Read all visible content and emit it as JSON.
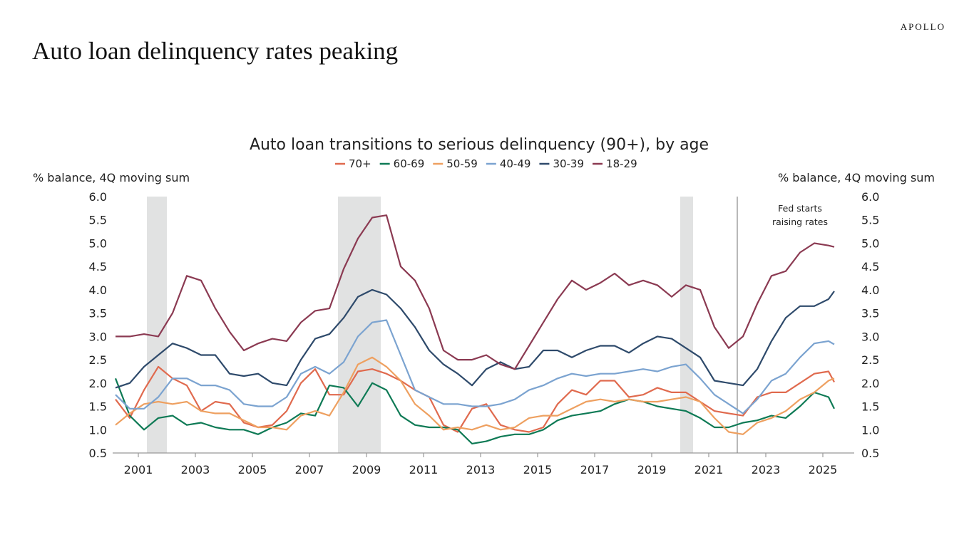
{
  "header": {
    "logo": "APOLLO",
    "title": "Auto loan delinquency rates peaking"
  },
  "chart_data": {
    "type": "line",
    "title": "Auto loan transitions to serious delinquency (90+), by age",
    "ylabel_left": "% balance, 4Q moving sum",
    "ylabel_right": "% balance, 4Q moving sum",
    "ylim": [
      0.5,
      6.0
    ],
    "yticks": [
      "0.5",
      "1.0",
      "1.5",
      "2.0",
      "2.5",
      "3.0",
      "3.5",
      "4.0",
      "4.5",
      "5.0",
      "5.5",
      "6.0"
    ],
    "xlim": [
      2000.1,
      2025.8
    ],
    "xticks": [
      "2001",
      "2003",
      "2005",
      "2007",
      "2009",
      "2011",
      "2013",
      "2015",
      "2017",
      "2019",
      "2021",
      "2023",
      "2025"
    ],
    "legend_position": "top-center",
    "grid": false,
    "recessions": [
      [
        2001.3,
        2002.0
      ],
      [
        2008.0,
        2009.5
      ],
      [
        2020.0,
        2020.45
      ]
    ],
    "annotation": {
      "x": 2022.0,
      "lines": [
        "Fed starts",
        "raising rates"
      ]
    },
    "x": [
      2000.2,
      2000.7,
      2001.2,
      2001.7,
      2002.2,
      2002.7,
      2003.2,
      2003.7,
      2004.2,
      2004.7,
      2005.2,
      2005.7,
      2006.2,
      2006.7,
      2007.2,
      2007.7,
      2008.2,
      2008.7,
      2009.2,
      2009.7,
      2010.2,
      2010.7,
      2011.2,
      2011.7,
      2012.2,
      2012.7,
      2013.2,
      2013.7,
      2014.2,
      2014.7,
      2015.2,
      2015.7,
      2016.2,
      2016.7,
      2017.2,
      2017.7,
      2018.2,
      2018.7,
      2019.2,
      2019.7,
      2020.2,
      2020.7,
      2021.2,
      2021.7,
      2022.2,
      2022.7,
      2023.2,
      2023.7,
      2024.2,
      2024.7,
      2025.2,
      2025.4
    ],
    "series": [
      {
        "name": "70+",
        "color": "#e06a4e",
        "values": [
          1.65,
          1.25,
          1.85,
          2.35,
          2.1,
          1.95,
          1.4,
          1.6,
          1.55,
          1.15,
          1.05,
          1.1,
          1.4,
          2.0,
          2.3,
          1.75,
          1.75,
          2.25,
          2.3,
          2.2,
          2.05,
          1.85,
          1.7,
          1.1,
          0.95,
          1.45,
          1.55,
          1.1,
          1.0,
          0.95,
          1.05,
          1.55,
          1.85,
          1.75,
          2.05,
          2.05,
          1.7,
          1.75,
          1.9,
          1.8,
          1.8,
          1.6,
          1.4,
          1.35,
          1.3,
          1.7,
          1.8,
          1.8,
          2.0,
          2.2,
          2.25,
          2.02
        ]
      },
      {
        "name": "60-69",
        "color": "#0e7a55",
        "values": [
          2.1,
          1.3,
          1.0,
          1.25,
          1.3,
          1.1,
          1.15,
          1.05,
          1.0,
          1.0,
          0.9,
          1.05,
          1.15,
          1.35,
          1.3,
          1.95,
          1.9,
          1.5,
          2.0,
          1.85,
          1.3,
          1.1,
          1.05,
          1.05,
          1.0,
          0.7,
          0.75,
          0.85,
          0.9,
          0.9,
          1.0,
          1.2,
          1.3,
          1.35,
          1.4,
          1.55,
          1.65,
          1.6,
          1.5,
          1.45,
          1.4,
          1.25,
          1.05,
          1.05,
          1.15,
          1.2,
          1.3,
          1.25,
          1.5,
          1.8,
          1.7,
          1.45
        ]
      },
      {
        "name": "50-59",
        "color": "#eea060",
        "values": [
          1.1,
          1.35,
          1.55,
          1.6,
          1.55,
          1.6,
          1.4,
          1.35,
          1.35,
          1.2,
          1.05,
          1.05,
          1.0,
          1.3,
          1.4,
          1.3,
          1.8,
          2.4,
          2.55,
          2.35,
          2.05,
          1.55,
          1.3,
          1.0,
          1.05,
          1.0,
          1.1,
          1.0,
          1.05,
          1.25,
          1.3,
          1.3,
          1.45,
          1.6,
          1.65,
          1.6,
          1.65,
          1.6,
          1.6,
          1.65,
          1.7,
          1.6,
          1.25,
          0.95,
          0.9,
          1.15,
          1.25,
          1.4,
          1.65,
          1.8,
          2.05,
          2.1
        ]
      },
      {
        "name": "40-49",
        "color": "#7ba3d0",
        "values": [
          1.75,
          1.45,
          1.45,
          1.7,
          2.1,
          2.1,
          1.95,
          1.95,
          1.85,
          1.55,
          1.5,
          1.5,
          1.7,
          2.2,
          2.35,
          2.2,
          2.45,
          3.0,
          3.3,
          3.35,
          2.6,
          1.85,
          1.7,
          1.55,
          1.55,
          1.5,
          1.5,
          1.55,
          1.65,
          1.85,
          1.95,
          2.1,
          2.2,
          2.15,
          2.2,
          2.2,
          2.25,
          2.3,
          2.25,
          2.35,
          2.4,
          2.1,
          1.75,
          1.55,
          1.35,
          1.65,
          2.05,
          2.2,
          2.55,
          2.85,
          2.9,
          2.83
        ]
      },
      {
        "name": "30-39",
        "color": "#2e4a6b",
        "values": [
          1.9,
          2.0,
          2.35,
          2.6,
          2.85,
          2.75,
          2.6,
          2.6,
          2.2,
          2.15,
          2.2,
          2.0,
          1.95,
          2.5,
          2.95,
          3.05,
          3.4,
          3.85,
          4.0,
          3.9,
          3.6,
          3.2,
          2.7,
          2.4,
          2.2,
          1.95,
          2.3,
          2.45,
          2.3,
          2.35,
          2.7,
          2.7,
          2.55,
          2.7,
          2.8,
          2.8,
          2.65,
          2.85,
          3.0,
          2.95,
          2.75,
          2.55,
          2.05,
          2.0,
          1.95,
          2.3,
          2.9,
          3.4,
          3.65,
          3.65,
          3.8,
          3.97
        ]
      },
      {
        "name": "18-29",
        "color": "#8b3a52",
        "values": [
          3.0,
          3.0,
          3.05,
          3.0,
          3.5,
          4.3,
          4.2,
          3.6,
          3.1,
          2.7,
          2.85,
          2.95,
          2.9,
          3.3,
          3.55,
          3.6,
          4.45,
          5.1,
          5.55,
          5.6,
          4.5,
          4.2,
          3.6,
          2.7,
          2.5,
          2.5,
          2.6,
          2.4,
          2.3,
          2.8,
          3.3,
          3.8,
          4.2,
          4.0,
          4.15,
          4.35,
          4.1,
          4.2,
          4.1,
          3.85,
          4.1,
          4.0,
          3.2,
          2.75,
          3.0,
          3.7,
          4.3,
          4.4,
          4.8,
          5.0,
          4.95,
          4.92
        ]
      }
    ]
  }
}
